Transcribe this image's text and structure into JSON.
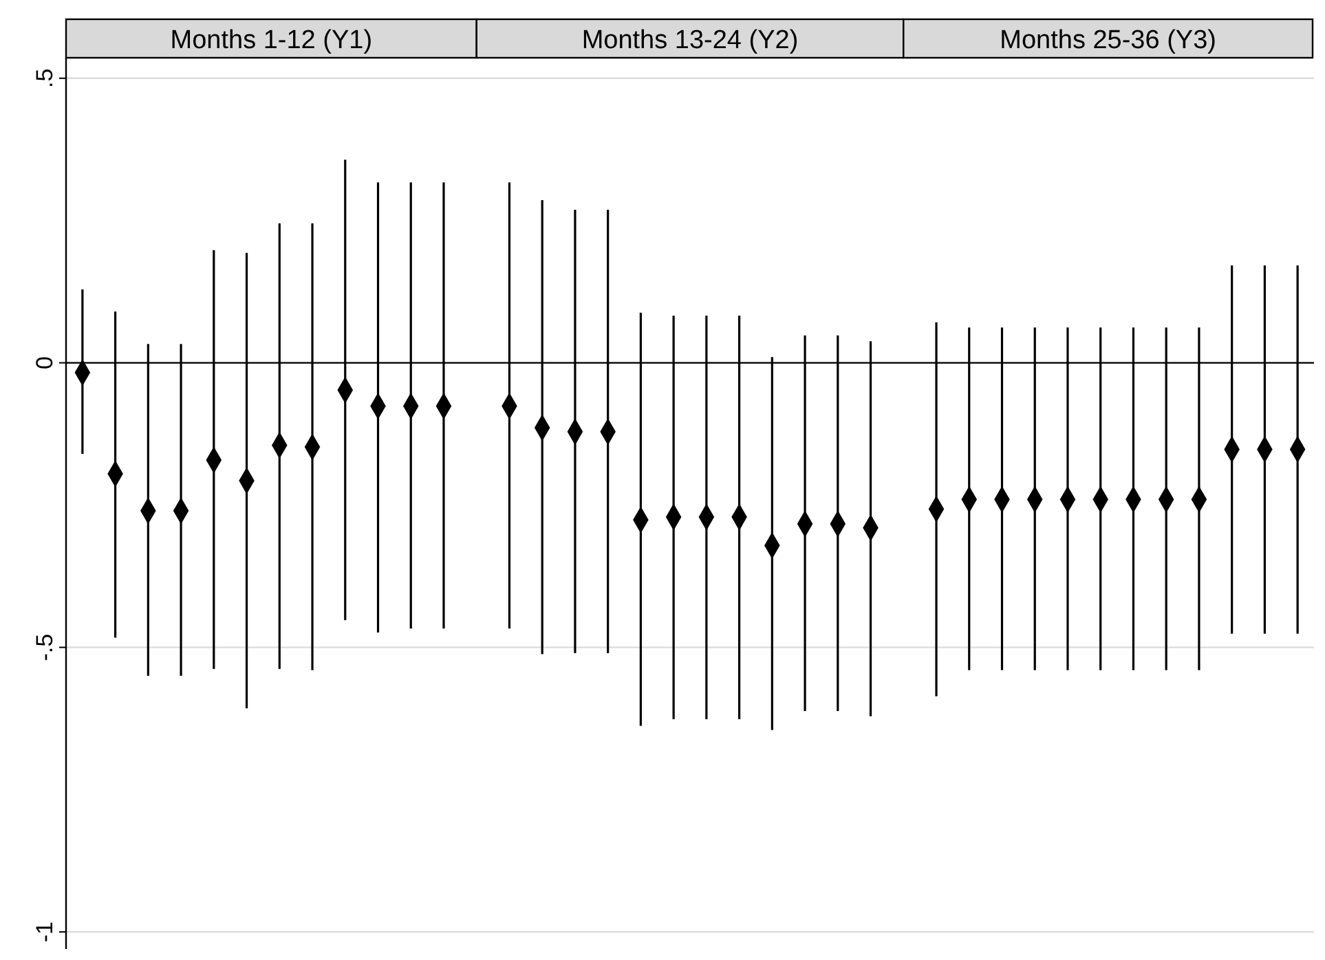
{
  "chart_data": {
    "type": "scatter",
    "categories": [
      null,
      null,
      null,
      null,
      null,
      null,
      null,
      null,
      null,
      null,
      null,
      null,
      null,
      null,
      null,
      null,
      null,
      null,
      null,
      null,
      null,
      null,
      null,
      null,
      null,
      null,
      null,
      null,
      null,
      null,
      null,
      null,
      null,
      null,
      null,
      null,
      null,
      null
    ],
    "series": [
      {
        "color": "#000000",
        "values": [
          -0.017,
          -0.195,
          -0.26,
          -0.26,
          -0.171,
          -0.207,
          -0.145,
          -0.148,
          -0.048,
          -0.076,
          -0.076,
          -0.076,
          null,
          null,
          null,
          null,
          null,
          null,
          null,
          null,
          null,
          null,
          null,
          null,
          null,
          null,
          null,
          null,
          null,
          null,
          null,
          null,
          null,
          null,
          null,
          null,
          null,
          null
        ],
        "errors": [
          [
            -0.16,
            0.129
          ],
          [
            -0.483,
            0.09
          ],
          [
            -0.55,
            0.033
          ],
          [
            -0.55,
            0.033
          ],
          [
            -0.538,
            0.198
          ],
          [
            -0.607,
            0.193
          ],
          [
            -0.538,
            0.245
          ],
          [
            -0.54,
            0.245
          ],
          [
            -0.452,
            0.357
          ],
          [
            -0.474,
            0.317
          ],
          [
            -0.467,
            0.317
          ],
          [
            -0.467,
            0.317
          ],
          null,
          null,
          null,
          null,
          null,
          null,
          null,
          null,
          null,
          null,
          null,
          null,
          null,
          null,
          null,
          null,
          null,
          null,
          null,
          null,
          null,
          null,
          null,
          null,
          null,
          null
        ]
      },
      {
        "color": "#000000",
        "values": [
          null,
          null,
          null,
          null,
          null,
          null,
          null,
          null,
          null,
          null,
          null,
          null,
          null,
          -0.076,
          -0.114,
          -0.121,
          -0.121,
          -0.276,
          -0.271,
          -0.271,
          -0.271,
          -0.321,
          -0.283,
          -0.283,
          -0.29,
          null,
          null,
          null,
          null,
          null,
          null,
          null,
          null,
          null,
          null,
          null,
          null,
          null
        ],
        "errors": [
          null,
          null,
          null,
          null,
          null,
          null,
          null,
          null,
          null,
          null,
          null,
          null,
          null,
          [
            -0.467,
            0.317
          ],
          [
            -0.512,
            0.286
          ],
          [
            -0.51,
            0.269
          ],
          [
            -0.51,
            0.269
          ],
          [
            -0.638,
            0.088
          ],
          [
            -0.626,
            0.083
          ],
          [
            -0.626,
            0.083
          ],
          [
            -0.626,
            0.083
          ],
          [
            -0.645,
            0.01
          ],
          [
            -0.612,
            0.048
          ],
          [
            -0.612,
            0.048
          ],
          [
            -0.621,
            0.038
          ],
          null,
          null,
          null,
          null,
          null,
          null,
          null,
          null,
          null,
          null,
          null,
          null,
          null
        ]
      },
      {
        "color": "#000000",
        "values": [
          null,
          null,
          null,
          null,
          null,
          null,
          null,
          null,
          null,
          null,
          null,
          null,
          null,
          null,
          null,
          null,
          null,
          null,
          null,
          null,
          null,
          null,
          null,
          null,
          null,
          null,
          -0.257,
          -0.24,
          -0.24,
          -0.24,
          -0.24,
          -0.24,
          -0.24,
          -0.24,
          -0.24,
          -0.152,
          -0.152,
          -0.152
        ],
        "errors": [
          null,
          null,
          null,
          null,
          null,
          null,
          null,
          null,
          null,
          null,
          null,
          null,
          null,
          null,
          null,
          null,
          null,
          null,
          null,
          null,
          null,
          null,
          null,
          null,
          null,
          null,
          [
            -0.586,
            0.071
          ],
          [
            -0.54,
            0.062
          ],
          [
            -0.54,
            0.062
          ],
          [
            -0.54,
            0.062
          ],
          [
            -0.54,
            0.062
          ],
          [
            -0.54,
            0.062
          ],
          [
            -0.54,
            0.062
          ],
          [
            -0.54,
            0.062
          ],
          [
            -0.54,
            0.062
          ],
          [
            -0.476,
            0.171
          ],
          [
            -0.476,
            0.171
          ],
          [
            -0.476,
            0.171
          ]
        ]
      }
    ],
    "annotations": [
      "Months 1-12 (Y1)",
      "Months 13-24 (Y2)",
      "Months 25-36 (Y3)"
    ],
    "marker": "diamond",
    "ylim": [
      -1.03,
      0.536
    ],
    "yticks": [
      {
        "value": 0.5,
        "label": ".5"
      },
      0,
      {
        "value": -0.5,
        "label": "-.5"
      },
      -1
    ],
    "grid": "y",
    "ref_lines": [
      {
        "axis": "y",
        "value": 0,
        "color": "#000000"
      }
    ],
    "tick_labels": "y"
  }
}
